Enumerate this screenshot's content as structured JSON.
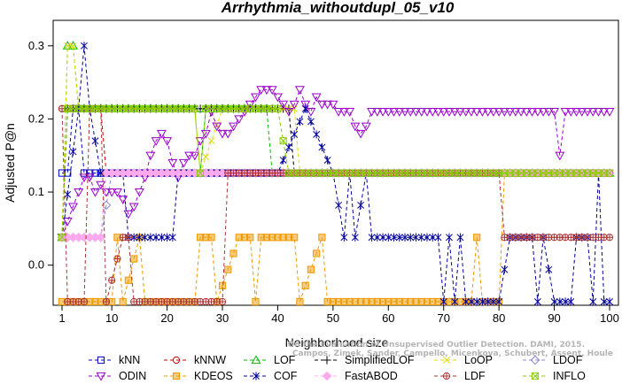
{
  "chart_data": {
    "type": "line",
    "title": "Arrhythmia_withoutdupl_05_v10",
    "xlabel": "Neighborhood size",
    "ylabel": "Adjusted P@n",
    "xlim": [
      1,
      100
    ],
    "ylim": [
      -0.05,
      0.33
    ],
    "x_ticks": [
      1,
      10,
      20,
      30,
      40,
      50,
      60,
      70,
      80,
      90,
      100
    ],
    "y_ticks": [
      0.0,
      0.1,
      0.2,
      0.3
    ],
    "y_tick_labels": [
      "0.0",
      "0.1",
      "0.2",
      "0.3"
    ],
    "grid": false,
    "legend_position": "bottom",
    "credit": [
      "Campos, Zimek, Sander, Campello, Micenkova, Schubert, Assent, Houle",
      "On the Evaluation of Unsupervised Outlier Detection. DAMI, 2015."
    ],
    "series": [
      {
        "name": "kNN",
        "color": "#0000cc",
        "marker": "square",
        "points": [
          [
            1,
            0.126
          ],
          [
            2,
            0.126
          ],
          [
            3,
            0.214
          ],
          [
            4,
            0.214
          ],
          [
            5,
            0.126
          ],
          [
            6,
            0.126
          ],
          [
            20,
            0.126
          ],
          [
            40,
            0.126
          ],
          [
            60,
            0.126
          ],
          [
            80,
            0.126
          ],
          [
            100,
            0.126
          ]
        ]
      },
      {
        "name": "kNNW",
        "color": "#cc0000",
        "marker": "circle",
        "points": [
          [
            1,
            0.214
          ],
          [
            2,
            0.214
          ],
          [
            5,
            0.214
          ],
          [
            8,
            0.214
          ],
          [
            9,
            0.126
          ],
          [
            20,
            0.126
          ],
          [
            40,
            0.126
          ],
          [
            60,
            0.126
          ],
          [
            80,
            0.126
          ],
          [
            100,
            0.126
          ]
        ]
      },
      {
        "name": "LOF",
        "color": "#00bb00",
        "marker": "triangle",
        "points": [
          [
            1,
            0.038
          ],
          [
            2,
            0.3
          ],
          [
            3,
            0.3
          ],
          [
            4,
            0.214
          ],
          [
            10,
            0.214
          ],
          [
            20,
            0.214
          ],
          [
            25,
            0.214
          ],
          [
            26,
            0.126
          ],
          [
            27,
            0.214
          ],
          [
            35,
            0.214
          ],
          [
            38,
            0.214
          ],
          [
            39,
            0.126
          ],
          [
            60,
            0.126
          ],
          [
            80,
            0.126
          ],
          [
            100,
            0.126
          ]
        ]
      },
      {
        "name": "SimplifiedLOF",
        "color": "#000000",
        "marker": "plus",
        "points": [
          [
            1,
            0.038
          ],
          [
            2,
            0.214
          ],
          [
            10,
            0.214
          ],
          [
            20,
            0.214
          ],
          [
            30,
            0.214
          ],
          [
            40,
            0.214
          ],
          [
            42,
            0.214
          ],
          [
            43,
            0.126
          ],
          [
            60,
            0.126
          ],
          [
            100,
            0.126
          ]
        ]
      },
      {
        "name": "LoOP",
        "color": "#dddd00",
        "marker": "x",
        "points": [
          [
            1,
            0.038
          ],
          [
            2,
            0.3
          ],
          [
            3,
            0.3
          ],
          [
            4,
            0.214
          ],
          [
            10,
            0.214
          ],
          [
            25,
            0.214
          ],
          [
            26,
            0.126
          ],
          [
            30,
            0.214
          ],
          [
            43,
            0.214
          ],
          [
            44,
            0.126
          ],
          [
            100,
            0.126
          ]
        ]
      },
      {
        "name": "LDOF",
        "color": "#8888dd",
        "marker": "diamond",
        "points": [
          [
            1,
            0.038
          ],
          [
            5,
            0.038
          ],
          [
            8,
            0.038
          ],
          [
            10,
            0.126
          ],
          [
            20,
            0.126
          ],
          [
            40,
            0.126
          ],
          [
            60,
            0.126
          ],
          [
            80,
            0.126
          ],
          [
            100,
            0.126
          ]
        ]
      },
      {
        "name": "ODIN",
        "color": "#9900cc",
        "marker": "triangle-down",
        "points": [
          [
            1,
            0.038
          ],
          [
            2,
            0.06
          ],
          [
            3,
            0.08
          ],
          [
            4,
            0.1
          ],
          [
            5,
            0.12
          ],
          [
            6,
            0.12
          ],
          [
            7,
            0.1
          ],
          [
            8,
            0.11
          ],
          [
            9,
            0.1
          ],
          [
            10,
            0.1
          ],
          [
            11,
            0.1
          ],
          [
            12,
            0.09
          ],
          [
            13,
            0.07
          ],
          [
            14,
            0.08
          ],
          [
            15,
            0.1
          ],
          [
            16,
            0.12
          ],
          [
            17,
            0.15
          ],
          [
            18,
            0.17
          ],
          [
            19,
            0.18
          ],
          [
            20,
            0.17
          ],
          [
            21,
            0.14
          ],
          [
            22,
            0.12
          ],
          [
            23,
            0.14
          ],
          [
            24,
            0.15
          ],
          [
            25,
            0.15
          ],
          [
            26,
            0.17
          ],
          [
            27,
            0.18
          ],
          [
            28,
            0.21
          ],
          [
            29,
            0.19
          ],
          [
            30,
            0.18
          ],
          [
            31,
            0.18
          ],
          [
            32,
            0.19
          ],
          [
            33,
            0.2
          ],
          [
            34,
            0.21
          ],
          [
            35,
            0.22
          ],
          [
            36,
            0.23
          ],
          [
            37,
            0.24
          ],
          [
            38,
            0.24
          ],
          [
            39,
            0.24
          ],
          [
            40,
            0.23
          ],
          [
            41,
            0.22
          ],
          [
            42,
            0.21
          ],
          [
            43,
            0.22
          ],
          [
            44,
            0.24
          ],
          [
            45,
            0.22
          ],
          [
            46,
            0.21
          ],
          [
            47,
            0.23
          ],
          [
            48,
            0.22
          ],
          [
            49,
            0.22
          ],
          [
            50,
            0.22
          ],
          [
            51,
            0.21
          ],
          [
            52,
            0.21
          ],
          [
            53,
            0.21
          ],
          [
            54,
            0.19
          ],
          [
            55,
            0.18
          ],
          [
            56,
            0.19
          ],
          [
            57,
            0.21
          ],
          [
            60,
            0.21
          ],
          [
            70,
            0.21
          ],
          [
            80,
            0.21
          ],
          [
            90,
            0.21
          ],
          [
            91,
            0.15
          ],
          [
            92,
            0.21
          ],
          [
            100,
            0.21
          ]
        ]
      },
      {
        "name": "KDEOS",
        "color": "#ee9900",
        "marker": "square-fill",
        "points": [
          [
            1,
            -0.05
          ],
          [
            10,
            -0.05
          ],
          [
            11,
            0.038
          ],
          [
            12,
            -0.05
          ],
          [
            15,
            0.038
          ],
          [
            16,
            -0.05
          ],
          [
            20,
            -0.05
          ],
          [
            25,
            -0.05
          ],
          [
            26,
            0.038
          ],
          [
            28,
            0.038
          ],
          [
            29,
            -0.05
          ],
          [
            33,
            0.038
          ],
          [
            35,
            0.038
          ],
          [
            36,
            -0.05
          ],
          [
            37,
            0.038
          ],
          [
            43,
            0.038
          ],
          [
            44,
            -0.05
          ],
          [
            48,
            0.038
          ],
          [
            49,
            -0.05
          ],
          [
            75,
            -0.05
          ],
          [
            76,
            0.038
          ],
          [
            77,
            -0.05
          ],
          [
            80,
            -0.05
          ],
          [
            81,
            0.126
          ],
          [
            100,
            0.126
          ]
        ]
      },
      {
        "name": "COF",
        "color": "#000099",
        "marker": "asterisk",
        "points": [
          [
            1,
            0.038
          ],
          [
            4,
            0.214
          ],
          [
            5,
            0.3
          ],
          [
            6,
            0.214
          ],
          [
            8,
            0.126
          ],
          [
            12,
            0.126
          ],
          [
            13,
            0.038
          ],
          [
            16,
            0.038
          ],
          [
            17,
            0.038
          ],
          [
            21,
            0.038
          ],
          [
            22,
            0.126
          ],
          [
            40,
            0.126
          ],
          [
            45,
            0.214
          ],
          [
            50,
            0.126
          ],
          [
            52,
            0.038
          ],
          [
            53,
            0.126
          ],
          [
            54,
            0.038
          ],
          [
            56,
            0.126
          ],
          [
            57,
            0.038
          ],
          [
            60,
            0.038
          ],
          [
            69,
            0.038
          ],
          [
            70,
            -0.05
          ],
          [
            71,
            0.038
          ],
          [
            72,
            -0.05
          ],
          [
            73,
            0.038
          ],
          [
            74,
            -0.05
          ],
          [
            80,
            -0.05
          ],
          [
            82,
            0.038
          ],
          [
            86,
            0.038
          ],
          [
            87,
            -0.05
          ],
          [
            88,
            0.038
          ],
          [
            90,
            -0.05
          ],
          [
            93,
            -0.05
          ],
          [
            94,
            0.038
          ],
          [
            96,
            0.038
          ],
          [
            97,
            -0.05
          ],
          [
            98,
            0.126
          ],
          [
            99,
            -0.05
          ],
          [
            100,
            -0.05
          ]
        ]
      },
      {
        "name": "FastABOD",
        "color": "#ffaaee",
        "marker": "diamond-fill",
        "points": [
          [
            1,
            0.038
          ],
          [
            8,
            0.038
          ],
          [
            9,
            0.126
          ],
          [
            20,
            0.126
          ],
          [
            40,
            0.126
          ],
          [
            60,
            0.126
          ],
          [
            100,
            0.126
          ]
        ]
      },
      {
        "name": "LDF",
        "color": "#aa3333",
        "marker": "circle-plus",
        "points": [
          [
            1,
            0.214
          ],
          [
            2,
            -0.05
          ],
          [
            5,
            -0.05
          ],
          [
            6,
            0.214
          ],
          [
            8,
            0.214
          ],
          [
            9,
            -0.05
          ],
          [
            12,
            0.038
          ],
          [
            13,
            0.038
          ],
          [
            14,
            -0.05
          ],
          [
            30,
            -0.05
          ],
          [
            31,
            0.126
          ],
          [
            40,
            0.126
          ],
          [
            80,
            0.126
          ],
          [
            81,
            0.038
          ],
          [
            100,
            0.038
          ]
        ]
      },
      {
        "name": "INFLO",
        "color": "#88cc00",
        "marker": "square-x",
        "points": [
          [
            1,
            0.038
          ],
          [
            2,
            0.214
          ],
          [
            10,
            0.214
          ],
          [
            20,
            0.214
          ],
          [
            25,
            0.214
          ],
          [
            26,
            0.126
          ],
          [
            27,
            0.214
          ],
          [
            40,
            0.214
          ],
          [
            42,
            0.126
          ],
          [
            100,
            0.126
          ]
        ]
      }
    ]
  }
}
